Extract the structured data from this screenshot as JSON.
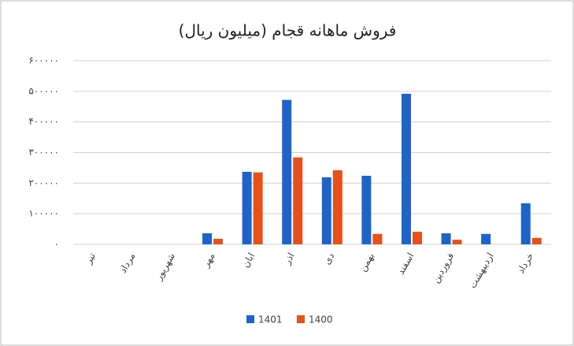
{
  "chart_data": {
    "type": "bar",
    "title": "فروش ماهانه قجام (میلیون ریال)",
    "categories": [
      "تیر",
      "مرداد",
      "شهریور",
      "مهر",
      "ابان",
      "اذر",
      "دی",
      "بهمن",
      "اسفند",
      "فروردین",
      "اردیبهشت",
      "خرداد"
    ],
    "series": [
      {
        "name": "1401",
        "color": "#1e64c8",
        "values": [
          null,
          null,
          null,
          36000,
          237000,
          472000,
          219000,
          224000,
          492000,
          36000,
          34000,
          134000
        ]
      },
      {
        "name": "1400",
        "color": "#e8501a",
        "values": [
          null,
          null,
          null,
          18000,
          235000,
          284000,
          242000,
          34000,
          41000,
          15000,
          null,
          21000
        ]
      }
    ],
    "ylim": [
      0,
      600000
    ],
    "yticks": [
      {
        "value": 0,
        "label": "۰"
      },
      {
        "value": 100000,
        "label": "۱۰۰۰۰۰"
      },
      {
        "value": 200000,
        "label": "۲۰۰۰۰۰"
      },
      {
        "value": 300000,
        "label": "۳۰۰۰۰۰"
      },
      {
        "value": 400000,
        "label": "۴۰۰۰۰۰"
      },
      {
        "value": 500000,
        "label": "۵۰۰۰۰۰"
      },
      {
        "value": 600000,
        "label": "۶۰۰۰۰۰"
      }
    ],
    "grid": true,
    "legend": "bottom"
  }
}
